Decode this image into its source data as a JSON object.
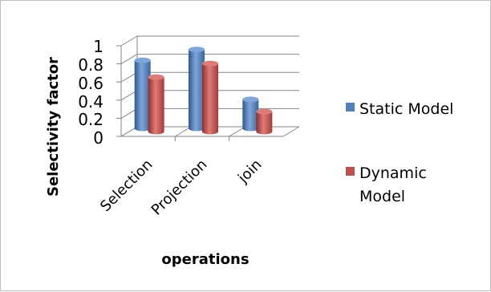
{
  "chart_data": {
    "type": "bar",
    "style": "3d-clustered-column",
    "categories": [
      "Selection",
      "Projection",
      "join"
    ],
    "series": [
      {
        "name": "Static Model",
        "values": [
          0.75,
          0.87,
          0.32
        ],
        "color": "#4f81bd"
      },
      {
        "name": "Dynamic Model",
        "values": [
          0.6,
          0.75,
          0.22
        ],
        "color": "#c0504d"
      }
    ],
    "yticks": [
      "0",
      "0.2",
      "0.4",
      "0.6",
      "0.8",
      "1"
    ],
    "ylim": [
      0,
      1
    ],
    "xlabel": "operations",
    "ylabel": "Selectivity  factor",
    "legend_position": "right",
    "legend": {
      "static_lines": [
        "Static Model"
      ],
      "dynamic_lines": [
        "Dynamic",
        "Model"
      ]
    },
    "grid": true
  }
}
